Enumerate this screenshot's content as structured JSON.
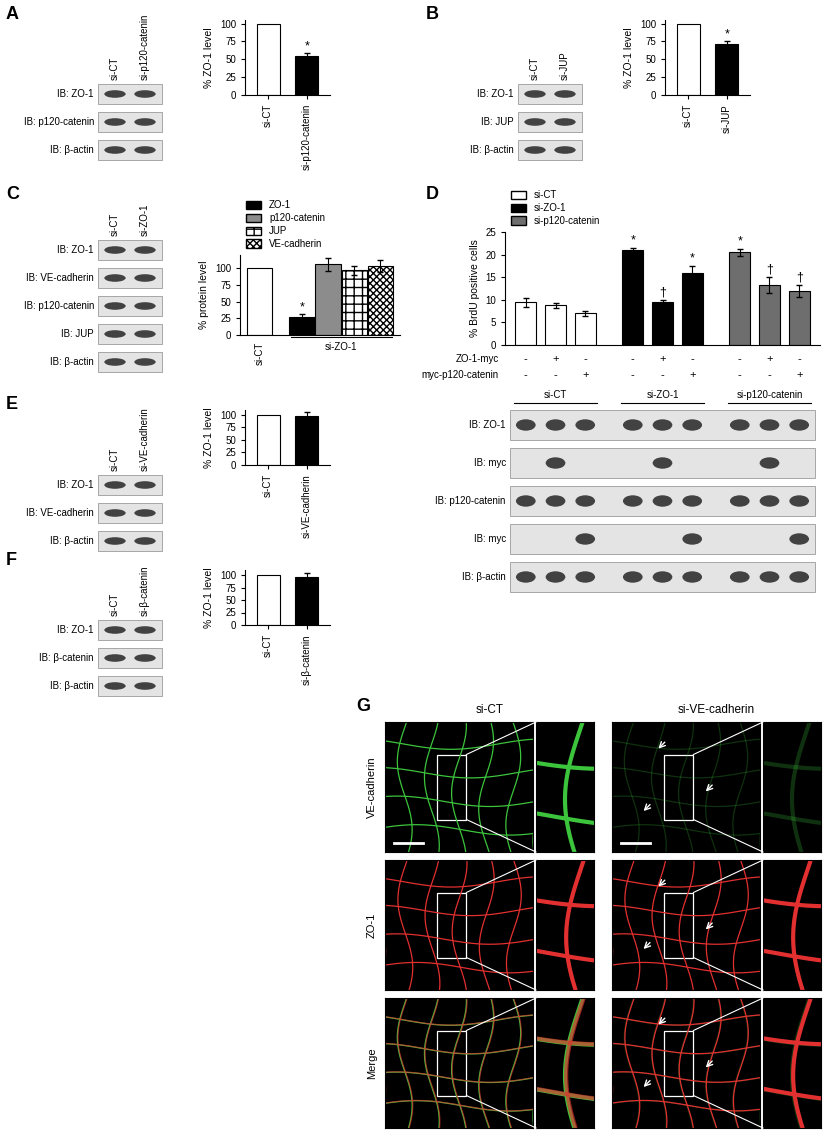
{
  "chart_data": [
    {
      "panel": "A",
      "type": "bar",
      "categories": [
        "si-CT",
        "si-p120-catenin"
      ],
      "values": [
        100,
        55
      ],
      "errors": [
        0,
        4
      ],
      "colors": [
        "#ffffff",
        "#000000"
      ],
      "annotations": [
        null,
        "*"
      ],
      "y_label": "% ZO-1 level",
      "ylim": [
        0,
        105
      ],
      "yticks": [
        0,
        25,
        50,
        75,
        100
      ]
    },
    {
      "panel": "B",
      "type": "bar",
      "categories": [
        "si-CT",
        "si-JUP"
      ],
      "values": [
        100,
        72
      ],
      "errors": [
        0,
        3
      ],
      "colors": [
        "#ffffff",
        "#000000"
      ],
      "annotations": [
        null,
        "*"
      ],
      "y_label": "% ZO-1 level",
      "ylim": [
        0,
        105
      ],
      "yticks": [
        0,
        25,
        50,
        75,
        100
      ]
    },
    {
      "panel": "C",
      "type": "bar",
      "y_label": "% protein level",
      "ylim": [
        0,
        120
      ],
      "yticks": [
        0,
        25,
        50,
        75,
        100
      ],
      "legend": "top",
      "groups": [
        {
          "label": "si-CT",
          "bars": [
            {
              "value": 100,
              "error": 0,
              "color": "#ffffff",
              "annotation": null
            }
          ]
        },
        {
          "label": "si-ZO-1",
          "bars": [
            {
              "name": "ZO-1",
              "value": 27,
              "error": 4,
              "color": "#000000",
              "annotation": "*"
            },
            {
              "name": "p120-catenin",
              "value": 106,
              "error": 10,
              "color": "#8c8c8c",
              "annotation": null
            },
            {
              "name": "JUP",
              "value": 97,
              "error": 7,
              "color": "#ffffff",
              "annotation": null
            },
            {
              "name": "VE-cadherin",
              "value": 104,
              "error": 9,
              "color": "#ffffff",
              "annotation": null
            }
          ]
        }
      ]
    },
    {
      "panel": "D",
      "type": "bar",
      "y_label": "% BrdU positive cells",
      "ylim": [
        0,
        25
      ],
      "yticks": [
        0,
        5,
        10,
        15,
        20,
        25
      ],
      "legend": "top",
      "tick_labels": "y",
      "groups": [
        {
          "label": "si-CT",
          "color": "#ffffff",
          "values": [
            9.5,
            8.8,
            7.0
          ],
          "errors": [
            1.0,
            0.6,
            0.5
          ],
          "annotations": [
            null,
            null,
            null
          ]
        },
        {
          "label": "si-ZO-1",
          "color": "#000000",
          "values": [
            21,
            9.5,
            16
          ],
          "errors": [
            0.5,
            0.4,
            1.5
          ],
          "annotations": [
            "*",
            "†",
            "*"
          ]
        },
        {
          "label": "si-p120-catenin",
          "color": "#6e6e6e",
          "values": [
            20.5,
            13.3,
            12
          ],
          "errors": [
            0.8,
            1.8,
            1.3
          ],
          "annotations": [
            "*",
            "†",
            "†"
          ]
        }
      ],
      "conditions": [
        {
          "label": "ZO-1-myc",
          "marks": [
            "-",
            "+",
            "-",
            "-",
            "+",
            "-",
            "-",
            "+",
            "-"
          ]
        },
        {
          "label": "myc-p120-catenin",
          "marks": [
            "-",
            "-",
            "+",
            "-",
            "-",
            "+",
            "-",
            "-",
            "+"
          ]
        }
      ]
    },
    {
      "panel": "E",
      "type": "bar",
      "categories": [
        "si-CT",
        "si-VE-cadherin"
      ],
      "values": [
        100,
        97
      ],
      "errors": [
        0,
        8
      ],
      "colors": [
        "#ffffff",
        "#000000"
      ],
      "annotations": [
        null,
        null
      ],
      "y_label": "% ZO-1 level",
      "ylim": [
        0,
        110
      ],
      "yticks": [
        0,
        25,
        50,
        75,
        100
      ]
    },
    {
      "panel": "F",
      "type": "bar",
      "categories": [
        "si-CT",
        "si-β-catenin"
      ],
      "values": [
        100,
        97
      ],
      "errors": [
        0,
        8
      ],
      "colors": [
        "#ffffff",
        "#000000"
      ],
      "annotations": [
        null,
        null
      ],
      "y_label": "% ZO-1 level",
      "ylim": [
        0,
        110
      ],
      "yticks": [
        0,
        25,
        50,
        75,
        100
      ]
    }
  ],
  "blots": [
    {
      "panel": "A",
      "lanes": [
        "si-CT",
        "si-p120-catenin"
      ],
      "rows": [
        "IB: ZO-1",
        "IB: p120-catenin",
        "IB: β-actin"
      ]
    },
    {
      "panel": "B",
      "lanes": [
        "si-CT",
        "si-JUP"
      ],
      "rows": [
        "IB: ZO-1",
        "IB: JUP",
        "IB: β-actin"
      ]
    },
    {
      "panel": "C",
      "lanes": [
        "si-CT",
        "si-ZO-1"
      ],
      "rows": [
        "IB: ZO-1",
        "IB: VE-cadherin",
        "IB: p120-catenin",
        "IB: JUP",
        "IB: β-actin"
      ]
    },
    {
      "panel": "D",
      "lane_groups": [
        "si-CT",
        "si-ZO-1",
        "si-p120-catenin"
      ],
      "rows": [
        "IB: ZO-1",
        "IB: myc",
        "IB: p120-catenin",
        "IB: myc",
        "IB: β-actin"
      ]
    },
    {
      "panel": "E",
      "lanes": [
        "si-CT",
        "si-VE-cadherin"
      ],
      "rows": [
        "IB: ZO-1",
        "IB: VE-cadherin",
        "IB: β-actin"
      ]
    },
    {
      "panel": "F",
      "lanes": [
        "si-CT",
        "si-β-catenin"
      ],
      "rows": [
        "IB: ZO-1",
        "IB: β-catenin",
        "IB: β-actin"
      ]
    }
  ],
  "micrographs": {
    "panel": "G",
    "columns": [
      "si-CT",
      "si-VE-cadherin"
    ],
    "rows": [
      "VE-cadherin",
      "ZO-1",
      "Merge"
    ]
  }
}
